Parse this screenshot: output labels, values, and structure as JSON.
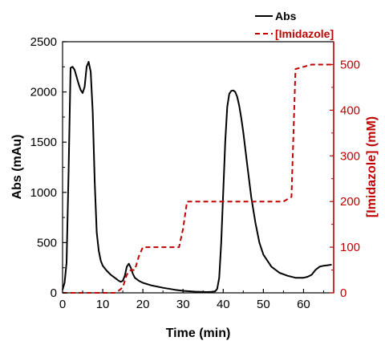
{
  "chart_data": {
    "type": "line",
    "xlabel": "Time (min)",
    "ylabel_left": "Abs (mAu)",
    "ylabel_right": "[Imidazole] (mM)",
    "x_ticks": [
      0,
      10,
      20,
      30,
      40,
      50,
      60
    ],
    "y_left_ticks": [
      0,
      500,
      1000,
      1500,
      2000,
      2500
    ],
    "y_right_ticks": [
      0,
      100,
      200,
      300,
      400,
      500
    ],
    "xlim": [
      0,
      67.5
    ],
    "ylim_left": [
      0,
      2500
    ],
    "ylim_right": [
      0,
      550
    ],
    "grid": false,
    "legend_position": "top-right",
    "colors": {
      "abs": "#000000",
      "imidazole": "#c00000",
      "right_axis": "#c00000"
    },
    "series": [
      {
        "name": "Abs",
        "axis": "left",
        "style": "solid",
        "x": [
          0,
          0.5,
          1,
          1.5,
          2,
          2.5,
          3,
          3.5,
          4,
          4.5,
          5,
          5.5,
          6,
          6.5,
          7,
          7.5,
          8,
          8.5,
          9,
          9.5,
          10,
          11,
          12,
          13,
          14,
          14.5,
          15,
          15.5,
          16,
          16.5,
          17,
          17.5,
          18,
          19,
          20,
          22,
          25,
          28,
          30,
          33,
          36,
          37,
          38,
          38.5,
          39,
          39.5,
          40,
          40.5,
          41,
          41.5,
          42,
          42.5,
          43,
          43.5,
          44,
          44.5,
          45,
          46,
          47,
          48,
          49,
          50,
          52,
          54,
          56,
          58,
          60,
          61,
          62,
          63,
          64,
          65,
          66,
          67
        ],
        "y": [
          30,
          100,
          300,
          1200,
          2240,
          2250,
          2220,
          2150,
          2080,
          2020,
          1990,
          2050,
          2250,
          2300,
          2200,
          1800,
          1100,
          600,
          420,
          320,
          270,
          220,
          180,
          150,
          120,
          110,
          120,
          170,
          260,
          290,
          250,
          190,
          150,
          120,
          100,
          75,
          50,
          30,
          20,
          12,
          8,
          10,
          15,
          40,
          150,
          500,
          1000,
          1500,
          1850,
          1980,
          2010,
          2015,
          2000,
          1950,
          1860,
          1740,
          1600,
          1270,
          950,
          700,
          500,
          380,
          260,
          200,
          170,
          150,
          150,
          160,
          180,
          230,
          260,
          270,
          275,
          280
        ]
      },
      {
        "name": "[Imidazole]",
        "axis": "right",
        "style": "dashed",
        "x": [
          0,
          13,
          14,
          15,
          16,
          17,
          18,
          19,
          20,
          24,
          28,
          29,
          30,
          31,
          34,
          38,
          42,
          46,
          50,
          54,
          55,
          56,
          57,
          57.5,
          58,
          60,
          62,
          64,
          67
        ],
        "y": [
          0,
          0,
          5,
          12,
          40,
          50,
          50,
          80,
          100,
          100,
          100,
          100,
          140,
          200,
          200,
          200,
          200,
          200,
          200,
          200,
          200,
          205,
          210,
          350,
          490,
          495,
          500,
          500,
          500
        ]
      }
    ]
  }
}
